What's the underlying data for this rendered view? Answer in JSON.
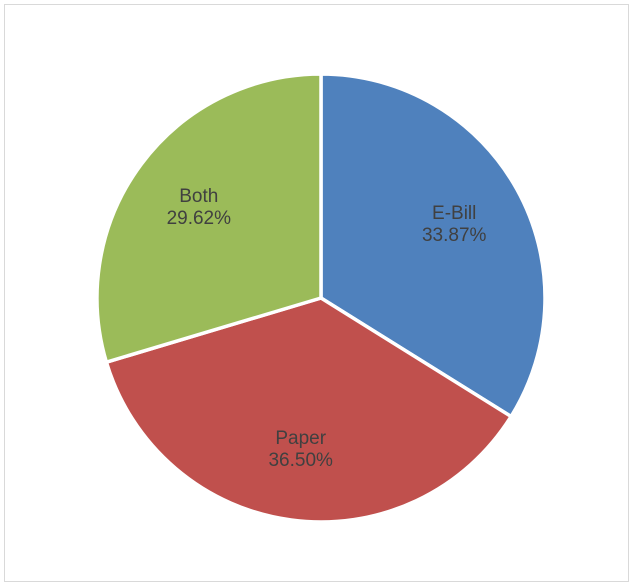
{
  "chart_data": {
    "type": "pie",
    "categories": [
      "E-Bill",
      "Paper",
      "Both"
    ],
    "values": [
      33.87,
      36.5,
      29.62
    ],
    "value_labels": [
      "33.87%",
      "36.50%",
      "29.62%"
    ],
    "colors": [
      "#4f81bd",
      "#c0504d",
      "#9bbb59"
    ],
    "start_angle_deg": 0,
    "direction": "clockwise",
    "legend": "none",
    "title": ""
  }
}
